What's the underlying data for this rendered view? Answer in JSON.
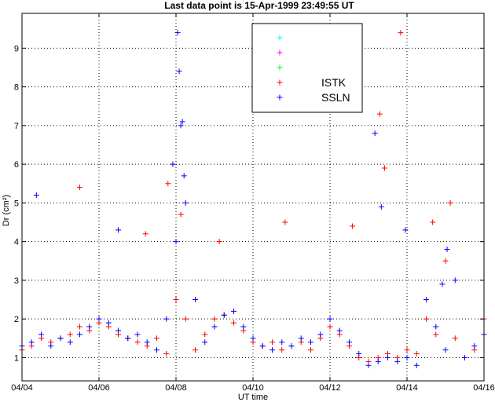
{
  "chart_data": {
    "type": "scatter",
    "title": "Last data point is 15-Apr-1999 23:49:55 UT",
    "xlabel": "UT time",
    "ylabel": "Dr (cm²)",
    "xlim": [
      "1999-04-04",
      "1999-04-16"
    ],
    "ylim": [
      0.4,
      9.9
    ],
    "x_ticks": [
      "04/04",
      "04/06",
      "04/08",
      "04/10",
      "04/12",
      "04/14",
      "04/16"
    ],
    "y_ticks": [
      1,
      2,
      3,
      4,
      5,
      6,
      7,
      8,
      9
    ],
    "grid": true,
    "marker": "+",
    "legend_position": "top-right",
    "legend": [
      {
        "name": "",
        "color": "#00ffff"
      },
      {
        "name": "",
        "color": "#ff00ff"
      },
      {
        "name": "",
        "color": "#00ff00"
      },
      {
        "name": "ISTK",
        "color": "#ff0000"
      },
      {
        "name": "SSLN",
        "color": "#0000ff"
      }
    ],
    "series": [
      {
        "name": "ISTK",
        "color": "#ff0000",
        "x": [
          "1999-04-04 00:00",
          "1999-04-04 06:00",
          "1999-04-04 12:00",
          "1999-04-04 18:00",
          "1999-04-05 00:00",
          "1999-04-05 06:00",
          "1999-04-05 12:00",
          "1999-04-05 18:00",
          "1999-04-06 00:00",
          "1999-04-06 06:00",
          "1999-04-06 12:00",
          "1999-04-06 18:00",
          "1999-04-07 00:00",
          "1999-04-07 06:00",
          "1999-04-07 12:00",
          "1999-04-07 18:00",
          "1999-04-08 00:00",
          "1999-04-08 06:00",
          "1999-04-08 12:00",
          "1999-04-08 18:00",
          "1999-04-09 00:00",
          "1999-04-09 06:00",
          "1999-04-09 12:00",
          "1999-04-09 18:00",
          "1999-04-10 00:00",
          "1999-04-10 06:00",
          "1999-04-10 12:00",
          "1999-04-10 18:00",
          "1999-04-11 00:00",
          "1999-04-11 06:00",
          "1999-04-11 12:00",
          "1999-04-11 18:00",
          "1999-04-12 00:00",
          "1999-04-12 06:00",
          "1999-04-12 12:00",
          "1999-04-12 18:00",
          "1999-04-13 00:00",
          "1999-04-13 06:00",
          "1999-04-13 12:00",
          "1999-04-13 18:00",
          "1999-04-14 00:00",
          "1999-04-14 06:00",
          "1999-04-14 12:00",
          "1999-04-14 18:00",
          "1999-04-15 00:00",
          "1999-04-15 06:00",
          "1999-04-15 12:00",
          "1999-04-15 18:00",
          "1999-04-16 00:00",
          "1999-04-05 12:00",
          "1999-04-07 05:00",
          "1999-04-07 19:00",
          "1999-04-08 03:00",
          "1999-04-09 03:00",
          "1999-04-10 20:00",
          "1999-04-12 14:00",
          "1999-04-13 07:00",
          "1999-04-13 10:00",
          "1999-04-13 20:00",
          "1999-04-14 16:00",
          "1999-04-15 03:00"
        ],
        "y": [
          1.2,
          1.3,
          1.5,
          1.4,
          1.5,
          1.6,
          1.8,
          1.7,
          1.9,
          1.8,
          1.6,
          1.5,
          1.4,
          1.3,
          1.5,
          1.1,
          2.5,
          2.0,
          1.2,
          1.6,
          2.0,
          2.1,
          1.9,
          1.7,
          1.4,
          1.3,
          1.4,
          1.2,
          1.3,
          1.4,
          1.2,
          1.5,
          1.8,
          1.6,
          1.3,
          1.0,
          0.9,
          1.0,
          1.1,
          1.0,
          1.2,
          1.1,
          2.0,
          1.6,
          3.5,
          1.5,
          1.0,
          1.2,
          2.0,
          5.4,
          4.2,
          5.5,
          4.7,
          4.0,
          4.5,
          4.4,
          7.3,
          5.9,
          9.4,
          4.5,
          5.0
        ]
      },
      {
        "name": "SSLN",
        "color": "#0000ff",
        "x": [
          "1999-04-04 00:00",
          "1999-04-04 06:00",
          "1999-04-04 12:00",
          "1999-04-04 18:00",
          "1999-04-05 00:00",
          "1999-04-05 06:00",
          "1999-04-05 12:00",
          "1999-04-05 18:00",
          "1999-04-06 00:00",
          "1999-04-06 06:00",
          "1999-04-06 12:00",
          "1999-04-06 18:00",
          "1999-04-07 00:00",
          "1999-04-07 06:00",
          "1999-04-07 12:00",
          "1999-04-07 18:00",
          "1999-04-08 00:00",
          "1999-04-08 03:00",
          "1999-04-08 06:00",
          "1999-04-08 12:00",
          "1999-04-08 18:00",
          "1999-04-09 00:00",
          "1999-04-09 06:00",
          "1999-04-09 12:00",
          "1999-04-09 18:00",
          "1999-04-10 00:00",
          "1999-04-10 06:00",
          "1999-04-10 12:00",
          "1999-04-10 18:00",
          "1999-04-11 00:00",
          "1999-04-11 06:00",
          "1999-04-11 12:00",
          "1999-04-11 18:00",
          "1999-04-12 00:00",
          "1999-04-12 06:00",
          "1999-04-12 12:00",
          "1999-04-12 18:00",
          "1999-04-13 00:00",
          "1999-04-13 06:00",
          "1999-04-13 12:00",
          "1999-04-13 18:00",
          "1999-04-14 00:00",
          "1999-04-14 06:00",
          "1999-04-14 12:00",
          "1999-04-14 18:00",
          "1999-04-15 00:00",
          "1999-04-15 06:00",
          "1999-04-15 12:00",
          "1999-04-15 18:00",
          "1999-04-16 00:00",
          "1999-04-04 09:00",
          "1999-04-08 01:00",
          "1999-04-08 02:00",
          "1999-04-08 04:00",
          "1999-04-08 05:00",
          "1999-04-07 22:00",
          "1999-04-06 12:00",
          "1999-04-13 04:00",
          "1999-04-13 08:00",
          "1999-04-13 23:00",
          "1999-04-15 01:00",
          "1999-04-14 22:00"
        ],
        "y": [
          1.3,
          1.4,
          1.6,
          1.3,
          1.5,
          1.4,
          1.6,
          1.8,
          2.0,
          1.9,
          1.7,
          1.5,
          1.6,
          1.4,
          1.2,
          2.0,
          4.0,
          7.0,
          5.0,
          2.5,
          1.4,
          1.8,
          2.1,
          2.2,
          1.8,
          1.5,
          1.3,
          1.2,
          1.4,
          1.3,
          1.5,
          1.4,
          1.6,
          2.0,
          1.7,
          1.4,
          1.1,
          0.8,
          0.9,
          1.0,
          0.9,
          1.0,
          0.8,
          2.5,
          1.8,
          1.2,
          3.0,
          1.0,
          1.3,
          1.6,
          5.2,
          9.4,
          8.4,
          7.1,
          5.7,
          6.0,
          4.3,
          6.8,
          4.9,
          4.3,
          3.8,
          2.9
        ]
      }
    ]
  }
}
